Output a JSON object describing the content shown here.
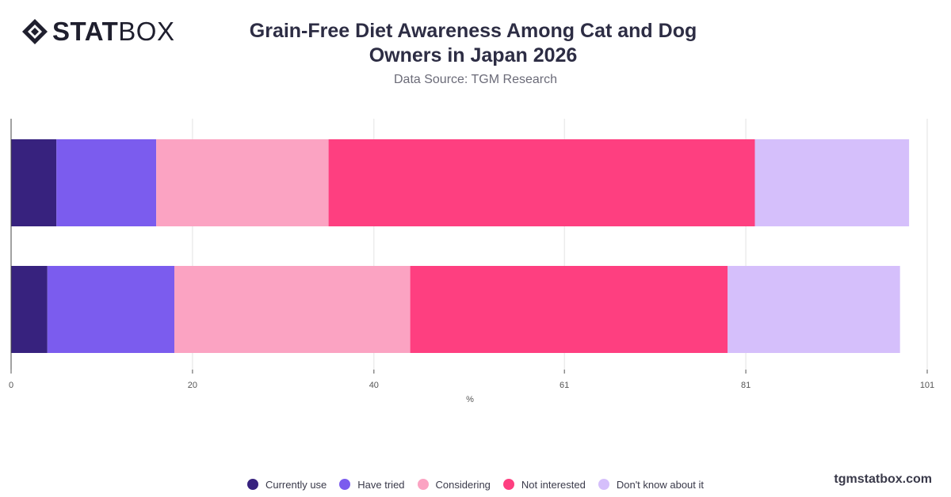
{
  "brand": {
    "logo_bold": "STAT",
    "logo_light": "BOX",
    "footer": "tgmstatbox.com"
  },
  "chart_data": {
    "type": "bar",
    "orientation": "horizontal",
    "stacked": true,
    "title": "Grain-Free Diet Awareness Among Cat and Dog Owners in Japan 2026",
    "subtitle": "Data Source: TGM Research",
    "xlabel": "%",
    "ylabel": "",
    "xlim": [
      0,
      101
    ],
    "xticks": [
      0,
      20,
      40,
      61,
      81,
      101
    ],
    "grid": true,
    "legend_position": "bottom",
    "categories": [
      "",
      ""
    ],
    "series": [
      {
        "name": "Currently use",
        "color": "#37227e",
        "values": [
          5,
          4
        ]
      },
      {
        "name": "Have tried",
        "color": "#7b5cee",
        "values": [
          11,
          14
        ]
      },
      {
        "name": "Considering",
        "color": "#fba3c2",
        "values": [
          19,
          26
        ]
      },
      {
        "name": "Not interested",
        "color": "#fe3f80",
        "values": [
          47,
          35
        ]
      },
      {
        "name": "Don't know about it",
        "color": "#d5bffb",
        "values": [
          17,
          19
        ]
      }
    ]
  }
}
